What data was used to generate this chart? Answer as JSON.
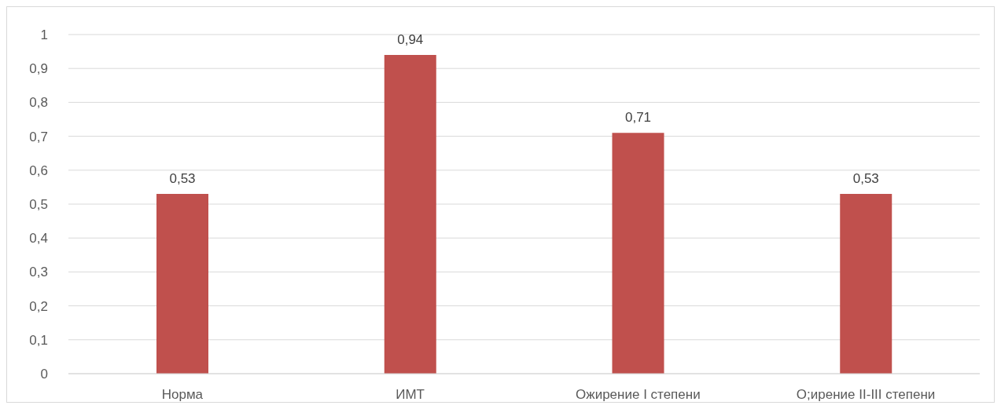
{
  "chart_data": {
    "type": "bar",
    "categories": [
      "Норма",
      "ИМТ",
      "Ожирение I степени",
      "О;ирение II-III степени"
    ],
    "values": [
      0.53,
      0.94,
      0.71,
      0.53
    ],
    "value_labels": [
      "0,53",
      "0,94",
      "0,71",
      "0,53"
    ],
    "color": "#c0504d",
    "ylim": [
      0,
      1
    ],
    "yticks": [
      0,
      {
        "value": 0.1,
        "label": "0,1"
      },
      {
        "value": 0.2,
        "label": "0,2"
      },
      {
        "value": 0.3,
        "label": "0,3"
      },
      {
        "value": 0.4,
        "label": "0,4"
      },
      {
        "value": 0.5,
        "label": "0,5"
      },
      {
        "value": 0.6,
        "label": "0,6"
      },
      {
        "value": 0.7,
        "label": "0,7"
      },
      {
        "value": 0.8,
        "label": "0,8"
      },
      {
        "value": 0.9,
        "label": "0,9"
      },
      1
    ],
    "grid": "y"
  }
}
